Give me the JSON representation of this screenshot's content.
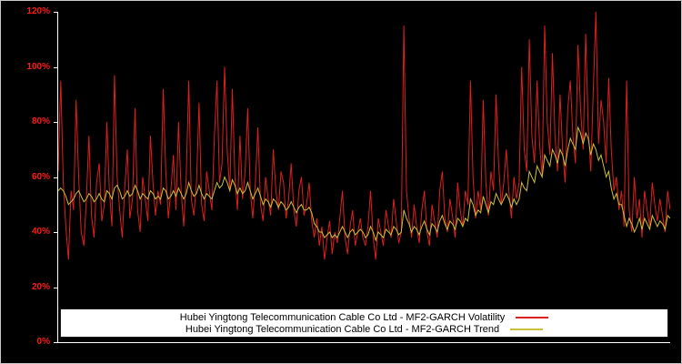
{
  "chart_data": {
    "type": "line",
    "title": "",
    "xlabel": "",
    "ylabel": "",
    "ylim": [
      0,
      120
    ],
    "grid": false,
    "legend_position": "bottom-center",
    "background_color": "#000000",
    "axis_color": "#ffffff",
    "tick_label_color": "#ff1a1a",
    "y_ticks": [
      {
        "value": 0,
        "label": "0%"
      },
      {
        "value": 20,
        "label": "20%"
      },
      {
        "value": 40,
        "label": "40%"
      },
      {
        "value": 60,
        "label": "60%"
      },
      {
        "value": 80,
        "label": "80%"
      },
      {
        "value": 100,
        "label": "100%"
      },
      {
        "value": 120,
        "label": "120%"
      }
    ],
    "series": [
      {
        "name": "Hubei Yingtong Telecommunication Cable Co Ltd - MF2-GARCH Volatility",
        "color": "#de1f1f",
        "values": [
          62,
          95,
          58,
          42,
          30,
          55,
          48,
          88,
          60,
          40,
          35,
          52,
          75,
          46,
          38,
          58,
          65,
          44,
          50,
          80,
          55,
          42,
          97,
          60,
          48,
          38,
          56,
          70,
          45,
          52,
          85,
          48,
          40,
          60,
          52,
          44,
          75,
          58,
          46,
          55,
          50,
          92,
          62,
          45,
          55,
          68,
          48,
          80,
          55,
          42,
          60,
          95,
          52,
          46,
          58,
          87,
          50,
          44,
          62,
          55,
          48,
          75,
          95,
          58,
          65,
          100,
          70,
          55,
          92,
          60,
          48,
          75,
          52,
          62,
          85,
          55,
          45,
          58,
          78,
          50,
          44,
          60,
          52,
          46,
          70,
          55,
          48,
          62,
          58,
          45,
          52,
          65,
          48,
          42,
          55,
          60,
          46,
          50,
          58,
          44,
          38,
          45,
          35,
          42,
          30,
          38,
          44,
          32,
          40,
          36,
          45,
          55,
          38,
          32,
          42,
          48,
          35,
          40,
          45,
          38,
          35,
          42,
          55,
          38,
          30,
          45,
          40,
          35,
          48,
          42,
          38,
          52,
          44,
          36,
          40,
          115,
          55,
          45,
          38,
          50,
          42,
          36,
          48,
          55,
          40,
          35,
          50,
          44,
          38,
          55,
          62,
          45,
          40,
          52,
          46,
          38,
          58,
          48,
          42,
          55,
          50,
          95,
          60,
          45,
          55,
          48,
          88,
          58,
          46,
          62,
          55,
          90,
          65,
          50,
          58,
          70,
          55,
          45,
          60,
          52,
          58,
          100,
          70,
          62,
          110,
          75,
          65,
          95,
          72,
          60,
          115,
          80,
          68,
          105,
          75,
          62,
          90,
          70,
          58,
          85,
          95,
          75,
          65,
          108,
          85,
          70,
          112,
          78,
          62,
          92,
          120,
          72,
          88,
          80,
          65,
          96,
          70,
          55,
          60,
          48,
          55,
          42,
          95,
          48,
          40,
          60,
          45,
          52,
          38,
          55,
          48,
          42,
          58,
          50,
          44,
          52,
          46,
          40,
          55,
          48
        ]
      },
      {
        "name": "Hubei Yingtong Telecommunication Cable Co Ltd - MF2-GARCH Trend",
        "color": "#ccc038",
        "values": [
          55,
          56,
          55,
          53,
          50,
          51,
          52,
          54,
          55,
          53,
          51,
          52,
          54,
          53,
          51,
          52,
          54,
          52,
          51,
          55,
          54,
          52,
          56,
          57,
          55,
          52,
          53,
          55,
          53,
          54,
          57,
          55,
          52,
          54,
          53,
          52,
          55,
          54,
          52,
          53,
          52,
          56,
          55,
          52,
          53,
          55,
          53,
          56,
          54,
          52,
          54,
          58,
          55,
          53,
          54,
          57,
          54,
          52,
          54,
          53,
          52,
          55,
          58,
          56,
          57,
          60,
          58,
          55,
          59,
          57,
          54,
          56,
          54,
          55,
          58,
          55,
          52,
          54,
          56,
          53,
          50,
          52,
          51,
          49,
          52,
          51,
          49,
          51,
          50,
          48,
          49,
          51,
          49,
          47,
          49,
          50,
          48,
          48,
          49,
          47,
          43,
          42,
          40,
          40,
          38,
          39,
          40,
          38,
          39,
          38,
          40,
          42,
          40,
          38,
          40,
          41,
          39,
          40,
          41,
          40,
          38,
          39,
          42,
          40,
          37,
          40,
          39,
          38,
          41,
          40,
          39,
          42,
          41,
          39,
          40,
          48,
          45,
          43,
          40,
          42,
          41,
          39,
          42,
          44,
          41,
          39,
          43,
          42,
          40,
          44,
          46,
          43,
          41,
          44,
          43,
          41,
          45,
          44,
          42,
          45,
          44,
          52,
          50,
          46,
          48,
          47,
          53,
          50,
          47,
          51,
          50,
          54,
          52,
          50,
          52,
          54,
          52,
          49,
          52,
          50,
          52,
          58,
          56,
          55,
          62,
          60,
          58,
          64,
          62,
          60,
          68,
          66,
          64,
          70,
          68,
          65,
          70,
          68,
          64,
          70,
          74,
          72,
          70,
          78,
          76,
          72,
          76,
          74,
          68,
          72,
          70,
          66,
          68,
          64,
          60,
          62,
          56,
          52,
          54,
          50,
          50,
          46,
          42,
          45,
          43,
          40,
          42,
          45,
          41,
          45,
          43,
          41,
          46,
          44,
          42,
          44,
          43,
          41,
          46,
          45
        ]
      }
    ]
  }
}
